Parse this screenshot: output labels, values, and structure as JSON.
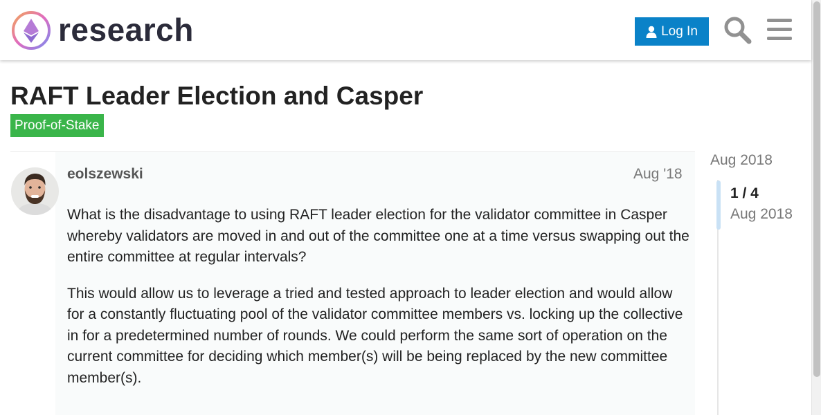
{
  "site": {
    "logo_text": "research"
  },
  "header": {
    "login_label": "Log In"
  },
  "topic": {
    "title": "RAFT Leader Election and Casper",
    "category": "Proof-of-Stake"
  },
  "post": {
    "username": "eolszewski",
    "date": "Aug '18",
    "paragraphs": [
      "What is the disadvantage to using RAFT leader election for the validator committee in Casper whereby validators are moved in and out of the committee one at a time versus swapping out the entire committee at regular intervals?",
      "This would allow us to leverage a tried and tested approach to leader election and would allow for a constantly fluctuating pool of the validator committee members vs. locking up the collective in for a predetermined number of rounds. We could perform the same sort of operation on the current committee for deciding which member(s) will be being replaced by the new committee member(s)."
    ]
  },
  "timeline": {
    "start_date": "Aug 2018",
    "position": "1 / 4",
    "current_date": "Aug 2018"
  },
  "colors": {
    "login_button": "#0a82c8",
    "category_badge": "#3ab54a",
    "timeline_handle": "#c9e1f5"
  },
  "icons": [
    "research-logo-icon",
    "user-icon",
    "search-icon",
    "hamburger-menu-icon"
  ]
}
